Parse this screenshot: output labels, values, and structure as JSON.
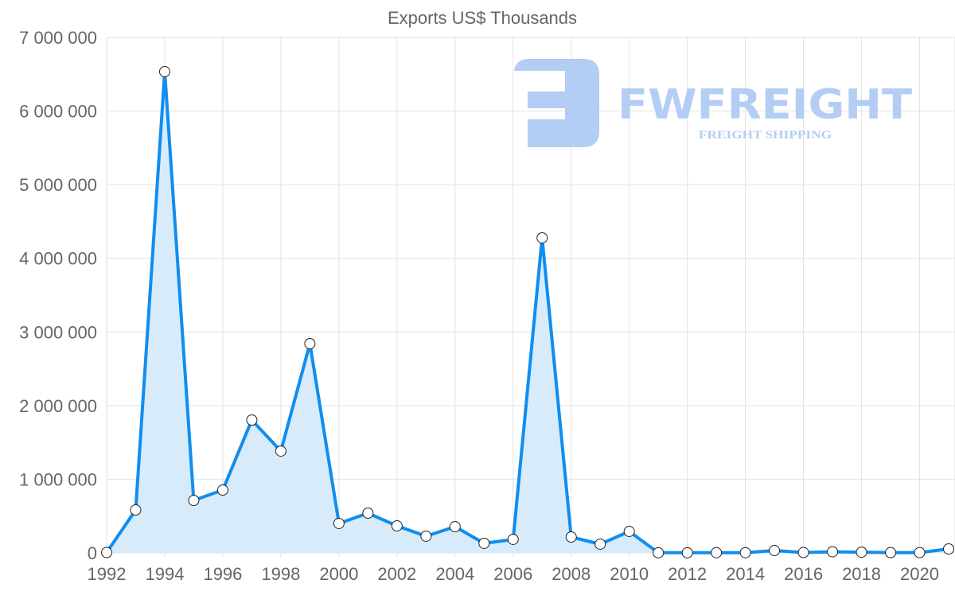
{
  "chart_data": {
    "type": "area",
    "title": "Exports US$ Thousands",
    "xlabel": "",
    "ylabel": "",
    "x": [
      1992,
      1993,
      1994,
      1995,
      1996,
      1997,
      1998,
      1999,
      2000,
      2001,
      2002,
      2003,
      2004,
      2005,
      2006,
      2007,
      2008,
      2009,
      2010,
      2011,
      2012,
      2013,
      2014,
      2015,
      2016,
      2017,
      2018,
      2019,
      2020,
      2021
    ],
    "series": [
      {
        "name": "Exports US$ Thousands",
        "values": [
          5000,
          583000,
          6535000,
          713000,
          853000,
          1804000,
          1383000,
          2841000,
          400000,
          540000,
          367000,
          227000,
          356000,
          130000,
          184000,
          4278000,
          216000,
          119000,
          292000,
          2000,
          2000,
          3000,
          3000,
          32000,
          5000,
          15000,
          10000,
          4000,
          4000,
          54000
        ]
      }
    ],
    "ylim": [
      0,
      7000000
    ],
    "xlim": [
      1992,
      2021
    ],
    "y_ticks": [
      "0",
      "1 000 000",
      "2 000 000",
      "3 000 000",
      "4 000 000",
      "5 000 000",
      "6 000 000",
      "7 000 000"
    ],
    "x_ticks": [
      "1992",
      "1994",
      "1996",
      "1998",
      "2000",
      "2002",
      "2004",
      "2006",
      "2008",
      "2010",
      "2012",
      "2014",
      "2016",
      "2018",
      "2020"
    ],
    "grid": true,
    "legend": "none",
    "colors": {
      "line": "#0f8ef0",
      "fill": "#d8ebfb",
      "grid": "#e2e2e2",
      "watermark": "#b3cdf4"
    }
  },
  "watermark": {
    "brand": "FWFREIGHT",
    "tagline": "FREIGHT SHIPPING"
  }
}
